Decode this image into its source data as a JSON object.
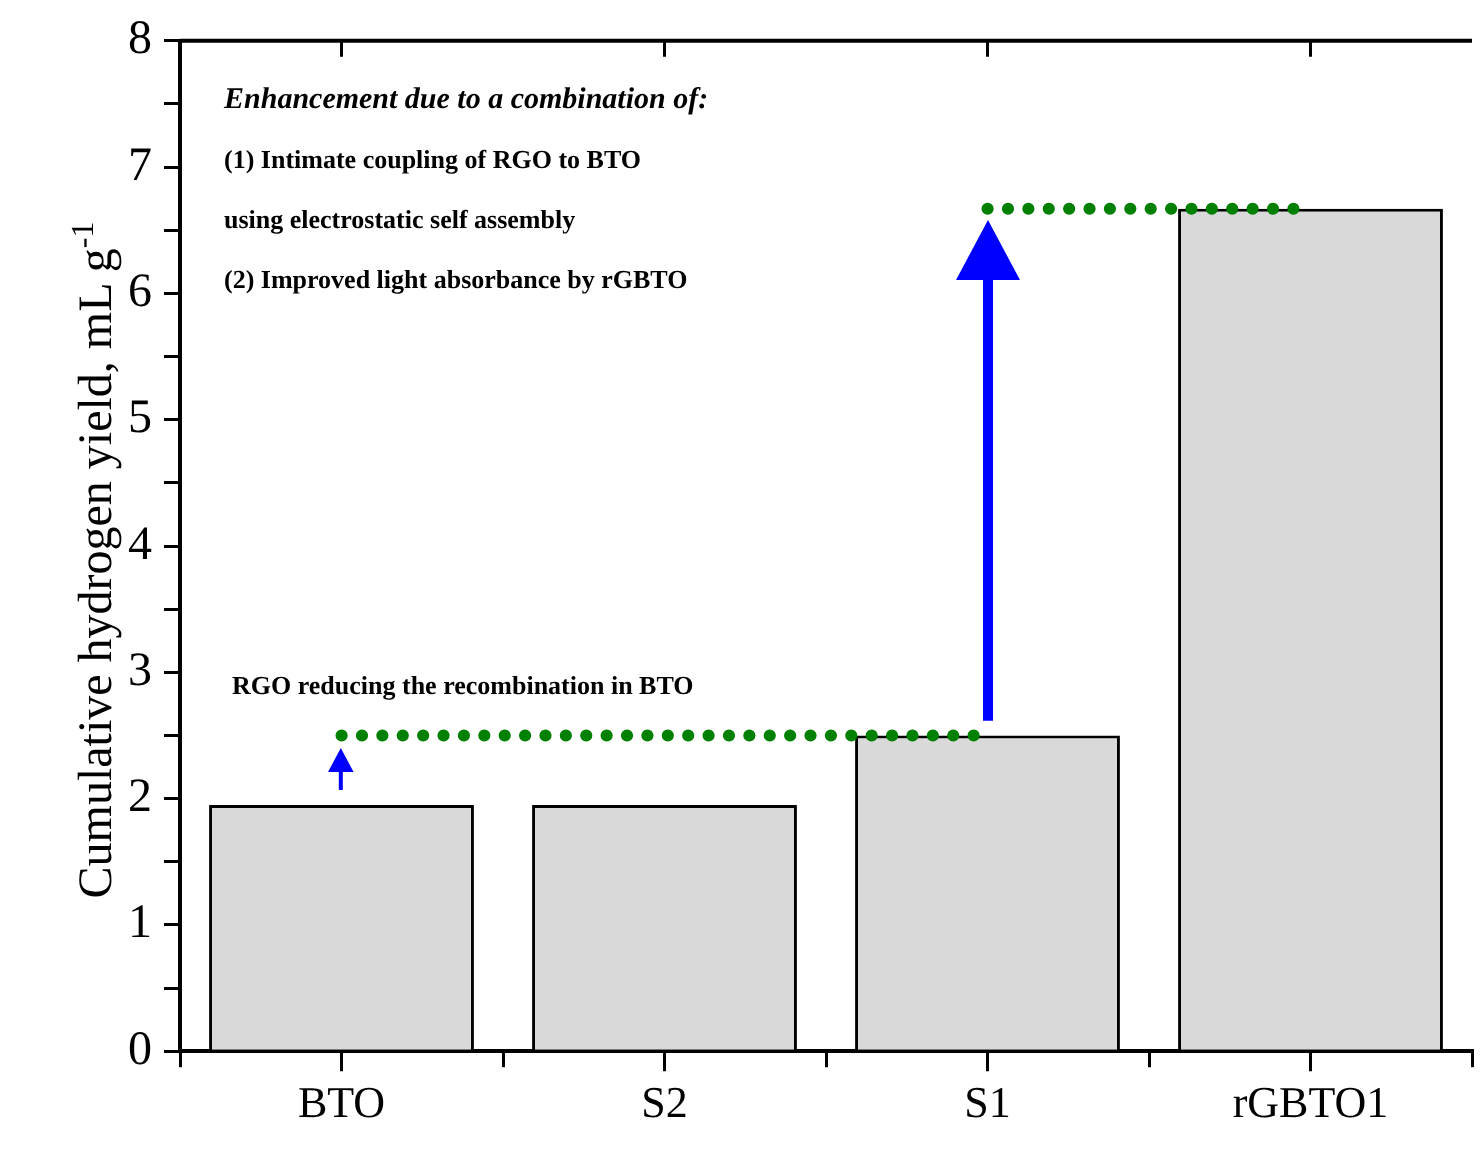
{
  "chart_data": {
    "type": "bar",
    "ylabel": "Cumulative hydrogen yield, mL g$^{-1}$",
    "categories": [
      "BTO",
      "S2",
      "S1",
      "rGBTO1"
    ],
    "series": [
      {
        "color": "#d9d9d9",
        "values": [
          1.95,
          1.95,
          2.5,
          6.67
        ]
      },
      {
        "type": "line",
        "color": "#008000",
        "values": [
          2.5,
          2.5,
          2.5,
          null
        ]
      },
      {
        "type": "line",
        "color": "#008000",
        "values": [
          null,
          null,
          6.67,
          6.67
        ]
      }
    ],
    "ylim": [
      0,
      8
    ],
    "yticks": [
      0,
      {
        "value": 0.5,
        "label": null
      },
      1,
      {
        "value": 1.5,
        "label": null
      },
      2,
      {
        "value": 2.5,
        "label": null
      },
      3,
      {
        "value": 3.5,
        "label": null
      },
      4,
      {
        "value": 4.5,
        "label": null
      },
      5,
      {
        "value": 5.5,
        "label": null
      },
      6,
      {
        "value": 6.5,
        "label": null
      },
      7,
      {
        "value": 7.5,
        "label": null
      },
      8
    ],
    "marker": "none",
    "line_style": "dotted",
    "grid": false,
    "legend": false,
    "annotations": [
      "Enhancement due to a combination of:",
      "(1) Intimate coupling of RGO to BTO",
      "using electrostatic self assembly",
      "(2) Improved light absorbance by rGBTO",
      "RGO reducing  the recombination in BTO"
    ]
  }
}
